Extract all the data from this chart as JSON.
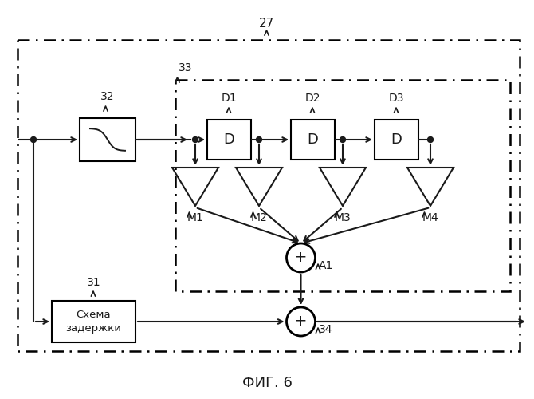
{
  "title": "ФИГ. 6",
  "label_27": "27",
  "label_32": "32",
  "label_33": "33",
  "label_31": "31",
  "label_D1": "D1",
  "label_D2": "D2",
  "label_D3": "D3",
  "label_M1": "M1",
  "label_M2": "M2",
  "label_M3": "M3",
  "label_M4": "M4",
  "label_A1": "A1",
  "label_34": "34",
  "label_delay": "Схема\nзадержки",
  "bg_color": "#ffffff",
  "line_color": "#1a1a1a"
}
